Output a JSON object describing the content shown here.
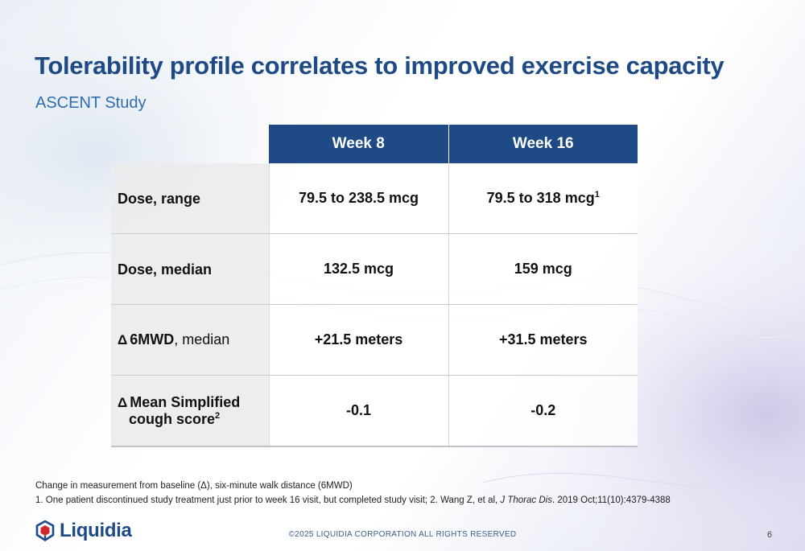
{
  "title": "Tolerability profile correlates to improved exercise capacity",
  "subtitle": "ASCENT Study",
  "table": {
    "columns": [
      "Week 8",
      "Week 16"
    ],
    "rows": [
      {
        "label": "Dose, range",
        "week8": "79.5 to 238.5 mcg",
        "week16": "79.5 to 318 mcg",
        "week16_sup": "1"
      },
      {
        "label": "Dose, median",
        "week8": "132.5 mcg",
        "week16": "159 mcg"
      },
      {
        "symbol": "Δ",
        "label": "6MWD",
        "label_suffix": ", median",
        "week8": "+21.5 meters",
        "week16": "+31.5 meters"
      },
      {
        "symbol": "Δ",
        "label": "Mean Simplified",
        "label_line2": "cough score",
        "label_sup": "2",
        "week8": "-0.1",
        "week16": "-0.2"
      }
    ]
  },
  "footnotes": {
    "line1": "Change in measurement from baseline (Δ), six-minute walk distance (6MWD)",
    "line2_a": "1. One patient discontinued study treatment just prior to week 16 visit, but completed study visit; 2. Wang Z, et al, ",
    "line2_journal": "J Thorac Dis",
    "line2_b": ". 2019 Oct;11(10):4379-4388"
  },
  "footer": {
    "logo_name": "Liquidia",
    "logo_icon": "liquidia-logo-icon",
    "copyright": "©2025 LIQUIDIA CORPORATION ALL RIGHTS RESERVED",
    "page_number": "6"
  },
  "colors": {
    "brand_blue": "#1e4a85",
    "subtitle_blue": "#2f6db0",
    "logo_red": "#d3282f"
  }
}
